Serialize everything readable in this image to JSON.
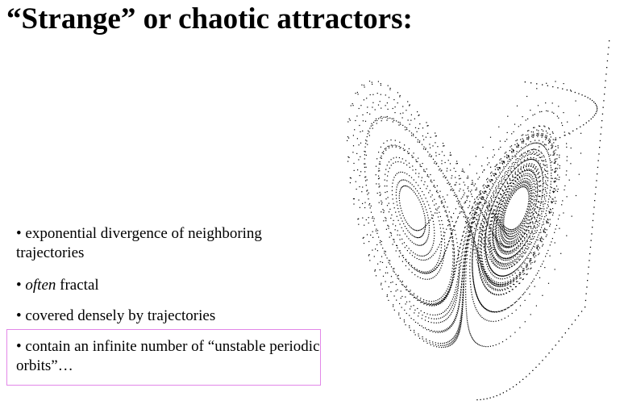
{
  "slide": {
    "title": "“Strange” or chaotic attractors:",
    "bullet_symbol": "•",
    "bullets": [
      {
        "text": "exponential divergence of neighboring trajectories"
      },
      {
        "emphasis": "often",
        "text": " fractal"
      },
      {
        "text": "covered densely by trajectories"
      },
      {
        "text": "contain an infinite number of “unstable periodic orbits”…"
      }
    ],
    "highlight_color": "#e287e8",
    "figure": {
      "icon": "lorenz-attractor",
      "dot_color": "#000000"
    }
  }
}
